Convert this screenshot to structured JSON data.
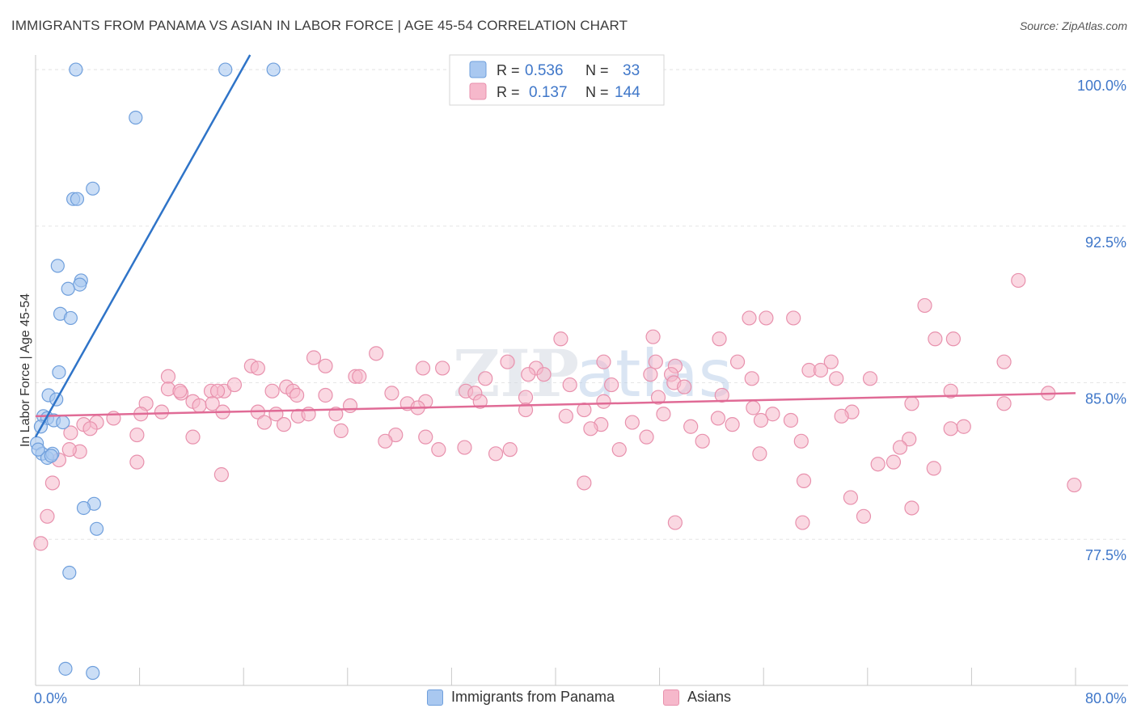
{
  "header": {
    "title": "IMMIGRANTS FROM PANAMA VS ASIAN IN LABOR FORCE | AGE 45-54 CORRELATION CHART",
    "source": "Source: ZipAtlas.com"
  },
  "watermark": {
    "text_a": "ZIP",
    "text_b": "atlas"
  },
  "colors": {
    "blue_fill": "#a9c8f0",
    "blue_stroke": "#6f9fdc",
    "blue_line": "#2f74c8",
    "pink_fill": "#f6b8cb",
    "pink_stroke": "#e891ad",
    "pink_line": "#e06b96",
    "axis_text": "#3f77c9",
    "grid": "#e6e6e6"
  },
  "stats_legend": {
    "rows": [
      {
        "r_label": "R =",
        "r_value": "0.536",
        "n_label": "N =",
        "n_value": "33"
      },
      {
        "r_label": "R =",
        "r_value": "0.137",
        "n_label": "N =",
        "n_value": "144"
      }
    ]
  },
  "bottom_legend": {
    "items": [
      {
        "label": "Immigrants from Panama"
      },
      {
        "label": "Asians"
      }
    ]
  },
  "chart_data": {
    "type": "scatter",
    "title": "IMMIGRANTS FROM PANAMA VS ASIAN IN LABOR FORCE | AGE 45-54 CORRELATION CHART",
    "xlabel": "",
    "ylabel": "In Labor Force | Age 45-54",
    "xlim": [
      0,
      80
    ],
    "ylim": [
      70.5,
      100.7
    ],
    "x_tick_labels": [
      "0.0%",
      "80.0%"
    ],
    "y_ticks": [
      77.5,
      85.0,
      92.5,
      100.0
    ],
    "y_tick_labels": [
      "77.5%",
      "85.0%",
      "92.5%",
      "100.0%"
    ],
    "grid": true,
    "legend_position": "top-center",
    "series": [
      {
        "name": "Immigrants from Panama",
        "r": 0.536,
        "n": 33,
        "trend": {
          "x": [
            0,
            16.5
          ],
          "y": [
            82.4,
            100.7
          ]
        },
        "points": [
          [
            3.1,
            100.0
          ],
          [
            14.6,
            100.0
          ],
          [
            18.3,
            100.0
          ],
          [
            7.7,
            97.7
          ],
          [
            2.9,
            93.8
          ],
          [
            3.2,
            93.8
          ],
          [
            4.4,
            94.3
          ],
          [
            1.7,
            90.6
          ],
          [
            3.5,
            89.9
          ],
          [
            3.4,
            89.7
          ],
          [
            2.5,
            89.5
          ],
          [
            1.9,
            88.3
          ],
          [
            2.7,
            88.1
          ],
          [
            1.8,
            85.5
          ],
          [
            1.0,
            84.4
          ],
          [
            1.6,
            84.2
          ],
          [
            0.6,
            83.4
          ],
          [
            0.9,
            83.3
          ],
          [
            1.4,
            83.2
          ],
          [
            2.1,
            83.1
          ],
          [
            0.4,
            82.9
          ],
          [
            0.1,
            82.1
          ],
          [
            0.5,
            81.6
          ],
          [
            0.9,
            81.4
          ],
          [
            1.3,
            81.6
          ],
          [
            1.2,
            81.5
          ],
          [
            4.5,
            79.2
          ],
          [
            3.7,
            79.0
          ],
          [
            4.7,
            78.0
          ],
          [
            2.6,
            75.9
          ],
          [
            2.3,
            71.3
          ],
          [
            4.4,
            71.1
          ],
          [
            0.2,
            81.8
          ]
        ]
      },
      {
        "name": "Asians",
        "r": 0.137,
        "n": 144,
        "trend": {
          "x": [
            0,
            80
          ],
          "y": [
            83.4,
            84.5
          ]
        },
        "points": [
          [
            75.6,
            89.9
          ],
          [
            68.4,
            88.7
          ],
          [
            54.9,
            88.1
          ],
          [
            56.2,
            88.1
          ],
          [
            58.3,
            88.1
          ],
          [
            40.4,
            87.1
          ],
          [
            47.5,
            87.2
          ],
          [
            52.6,
            87.1
          ],
          [
            69.2,
            87.1
          ],
          [
            70.6,
            87.1
          ],
          [
            26.2,
            86.4
          ],
          [
            21.4,
            86.2
          ],
          [
            36.3,
            86.0
          ],
          [
            43.7,
            86.0
          ],
          [
            47.7,
            86.0
          ],
          [
            54.0,
            86.0
          ],
          [
            61.2,
            86.0
          ],
          [
            74.5,
            86.0
          ],
          [
            16.6,
            85.8
          ],
          [
            17.1,
            85.7
          ],
          [
            22.3,
            85.8
          ],
          [
            29.8,
            85.7
          ],
          [
            31.3,
            85.7
          ],
          [
            38.5,
            85.7
          ],
          [
            49.2,
            85.8
          ],
          [
            59.5,
            85.6
          ],
          [
            60.4,
            85.6
          ],
          [
            10.2,
            85.3
          ],
          [
            24.6,
            85.3
          ],
          [
            24.9,
            85.3
          ],
          [
            34.6,
            85.2
          ],
          [
            37.9,
            85.4
          ],
          [
            39.1,
            85.4
          ],
          [
            47.3,
            85.4
          ],
          [
            48.9,
            85.4
          ],
          [
            55.1,
            85.2
          ],
          [
            61.6,
            85.2
          ],
          [
            64.2,
            85.2
          ],
          [
            10.2,
            84.7
          ],
          [
            11.2,
            84.5
          ],
          [
            13.5,
            84.6
          ],
          [
            14.5,
            84.6
          ],
          [
            15.3,
            84.9
          ],
          [
            19.3,
            84.8
          ],
          [
            19.8,
            84.6
          ],
          [
            20.1,
            84.4
          ],
          [
            22.3,
            84.4
          ],
          [
            27.4,
            84.5
          ],
          [
            33.1,
            84.6
          ],
          [
            33.8,
            84.5
          ],
          [
            41.1,
            84.9
          ],
          [
            44.3,
            84.9
          ],
          [
            49.1,
            85.0
          ],
          [
            49.9,
            84.8
          ],
          [
            52.8,
            84.4
          ],
          [
            70.4,
            84.6
          ],
          [
            77.9,
            84.5
          ],
          [
            8.5,
            84.0
          ],
          [
            12.1,
            84.1
          ],
          [
            12.6,
            83.9
          ],
          [
            11.1,
            84.6
          ],
          [
            14.0,
            84.6
          ],
          [
            18.2,
            84.6
          ],
          [
            13.6,
            84.0
          ],
          [
            24.2,
            83.9
          ],
          [
            28.6,
            84.0
          ],
          [
            30.0,
            84.1
          ],
          [
            34.2,
            84.1
          ],
          [
            37.7,
            84.3
          ],
          [
            42.2,
            83.7
          ],
          [
            43.7,
            84.1
          ],
          [
            47.9,
            84.3
          ],
          [
            55.2,
            83.8
          ],
          [
            62.8,
            83.6
          ],
          [
            67.4,
            84.0
          ],
          [
            74.5,
            84.0
          ],
          [
            8.1,
            83.5
          ],
          [
            9.7,
            83.6
          ],
          [
            14.4,
            83.6
          ],
          [
            17.1,
            83.6
          ],
          [
            18.5,
            83.5
          ],
          [
            20.2,
            83.4
          ],
          [
            21.0,
            83.5
          ],
          [
            23.1,
            83.5
          ],
          [
            29.4,
            83.8
          ],
          [
            37.7,
            83.7
          ],
          [
            40.8,
            83.4
          ],
          [
            43.5,
            83.0
          ],
          [
            48.3,
            83.5
          ],
          [
            52.5,
            83.3
          ],
          [
            56.7,
            83.5
          ],
          [
            58.1,
            83.2
          ],
          [
            62.0,
            83.4
          ],
          [
            6.0,
            83.3
          ],
          [
            4.7,
            83.1
          ],
          [
            2.7,
            82.6
          ],
          [
            3.7,
            83.0
          ],
          [
            4.2,
            82.8
          ],
          [
            17.6,
            83.1
          ],
          [
            19.1,
            83.0
          ],
          [
            23.5,
            82.7
          ],
          [
            27.7,
            82.5
          ],
          [
            42.7,
            82.8
          ],
          [
            45.9,
            83.1
          ],
          [
            50.4,
            82.9
          ],
          [
            53.6,
            83.0
          ],
          [
            55.8,
            83.2
          ],
          [
            70.4,
            82.8
          ],
          [
            71.4,
            82.9
          ],
          [
            7.8,
            82.5
          ],
          [
            12.1,
            82.4
          ],
          [
            26.9,
            82.2
          ],
          [
            30.0,
            82.4
          ],
          [
            47.0,
            82.4
          ],
          [
            51.3,
            82.2
          ],
          [
            58.9,
            82.2
          ],
          [
            67.2,
            82.3
          ],
          [
            3.4,
            81.7
          ],
          [
            2.6,
            81.8
          ],
          [
            1.8,
            81.3
          ],
          [
            31.0,
            81.8
          ],
          [
            33.0,
            81.9
          ],
          [
            35.4,
            81.6
          ],
          [
            36.5,
            81.8
          ],
          [
            44.9,
            81.8
          ],
          [
            55.7,
            81.6
          ],
          [
            66.5,
            81.9
          ],
          [
            7.8,
            81.2
          ],
          [
            64.8,
            81.1
          ],
          [
            66.0,
            81.2
          ],
          [
            69.1,
            80.9
          ],
          [
            1.3,
            80.2
          ],
          [
            14.3,
            80.6
          ],
          [
            42.2,
            80.2
          ],
          [
            59.1,
            80.3
          ],
          [
            79.9,
            80.1
          ],
          [
            62.7,
            79.5
          ],
          [
            67.4,
            79.0
          ],
          [
            0.9,
            78.6
          ],
          [
            49.2,
            78.3
          ],
          [
            63.7,
            78.6
          ],
          [
            59.0,
            78.3
          ],
          [
            0.4,
            77.3
          ]
        ]
      }
    ]
  }
}
